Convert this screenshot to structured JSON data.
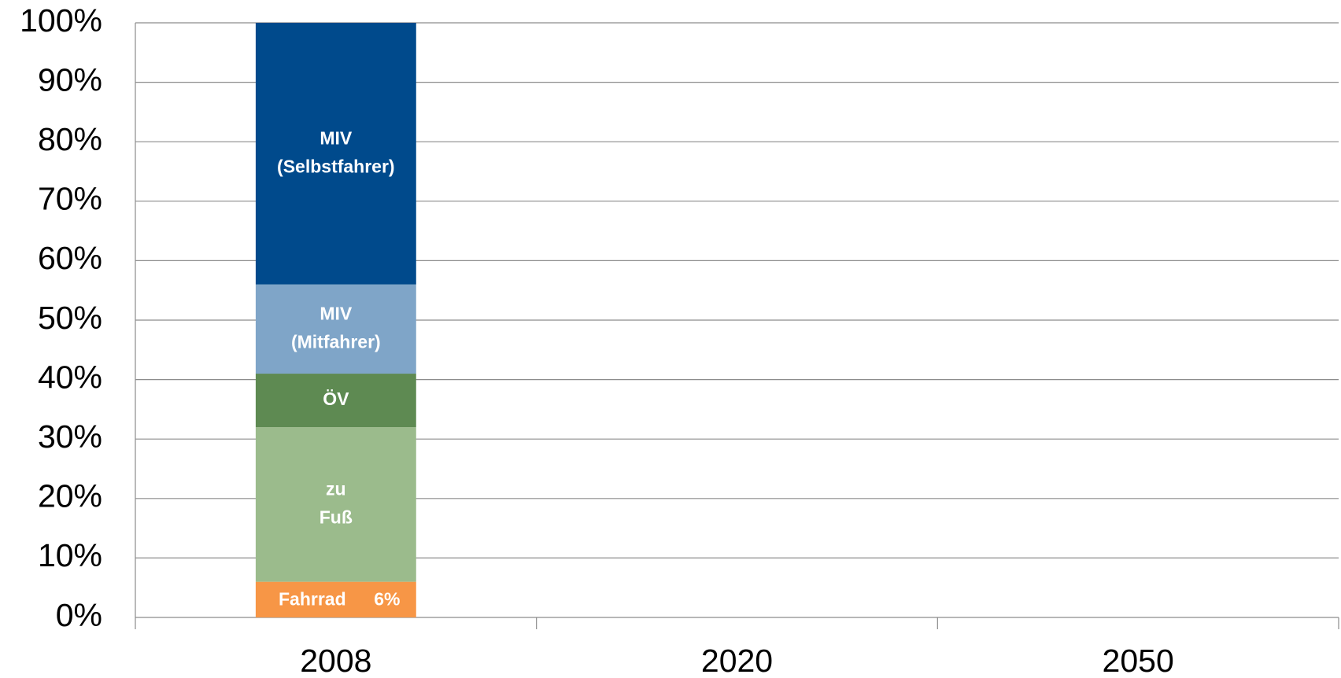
{
  "chart_data": {
    "type": "stacked_bar",
    "categories": [
      "2008",
      "2020",
      "2050"
    ],
    "series": [
      {
        "name": "Fahrrad",
        "color": "#f79646",
        "values": [
          6,
          null,
          null
        ],
        "value_labels": [
          "6%",
          null,
          null
        ]
      },
      {
        "name": "zu Fuß",
        "color": "#9bbb8c",
        "values": [
          26,
          null,
          null
        ]
      },
      {
        "name": "ÖV",
        "color": "#5e8a52",
        "values": [
          9,
          null,
          null
        ]
      },
      {
        "name": "MIV (Mitfahrer)",
        "color": "#7fa5c8",
        "values": [
          15,
          null,
          null
        ]
      },
      {
        "name": "MIV (Selbstfahrer)",
        "color": "#004a8c",
        "values": [
          44,
          null,
          null
        ]
      }
    ],
    "ylim": [
      0,
      100
    ],
    "yticks": [
      {
        "value": 0,
        "label": "0%"
      },
      {
        "value": 10,
        "label": "10%"
      },
      {
        "value": 20,
        "label": "20%"
      },
      {
        "value": 30,
        "label": "30%"
      },
      {
        "value": 40,
        "label": "40%"
      },
      {
        "value": 50,
        "label": "50%"
      },
      {
        "value": 60,
        "label": "60%"
      },
      {
        "value": 70,
        "label": "70%"
      },
      {
        "value": 80,
        "label": "80%"
      },
      {
        "value": 90,
        "label": "90%"
      },
      {
        "value": 100,
        "label": "100%"
      }
    ],
    "grid": true
  }
}
